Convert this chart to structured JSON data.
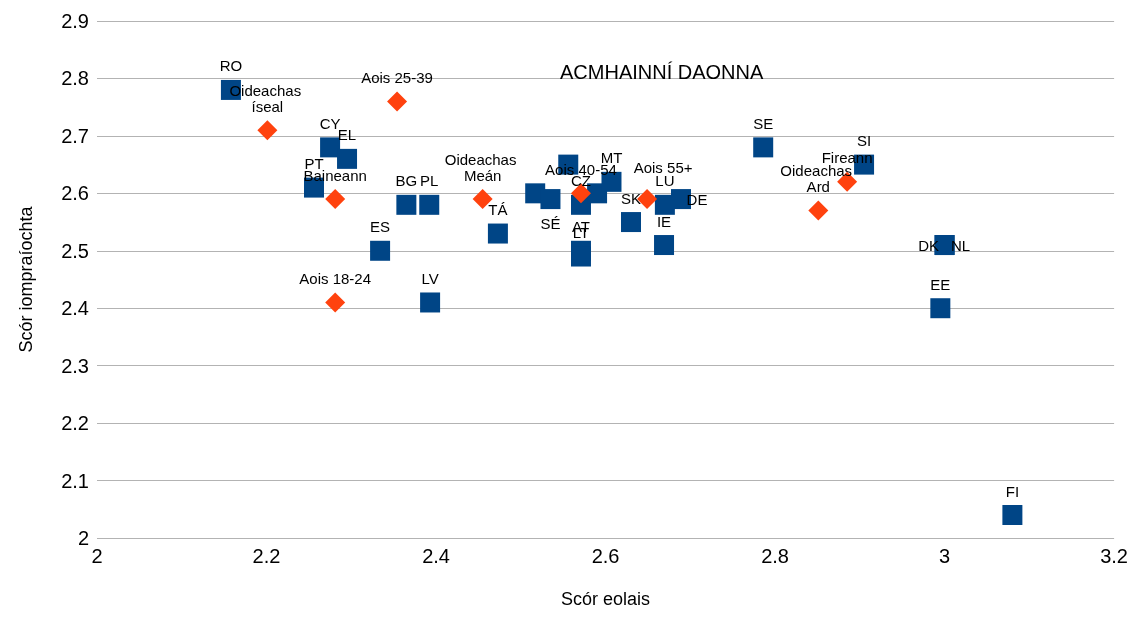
{
  "chart_data": {
    "type": "scatter",
    "xlabel": "Scór eolais",
    "ylabel": "Scór iompraíochta",
    "xlim": [
      2,
      3.2
    ],
    "xticks": [
      2,
      2.2,
      2.4,
      2.6,
      2.8,
      3,
      3.2
    ],
    "ylim": [
      2,
      2.9
    ],
    "yticks": [
      2,
      2.1,
      2.2,
      2.3,
      2.4,
      2.5,
      2.6,
      2.7,
      2.8,
      2.9
    ],
    "grid": "y",
    "annotations": [
      "ACMHAINNÍ DAONNA"
    ],
    "series": [
      {
        "color": "#004586",
        "marker": "square",
        "x": [
          2.158,
          2.275,
          2.295,
          2.256,
          2.365,
          2.392,
          2.334,
          2.393,
          2.473,
          2.517,
          2.535,
          2.556,
          2.571,
          2.571,
          2.571,
          2.59,
          2.607,
          2.63,
          2.67,
          2.669,
          2.689,
          2.786,
          2.905,
          3.0,
          3.0,
          2.995,
          3.08
        ],
        "values": [
          2.78,
          2.68,
          2.66,
          2.61,
          2.58,
          2.58,
          2.5,
          2.41,
          2.53,
          2.6,
          2.59,
          2.65,
          2.58,
          2.5,
          2.49,
          2.6,
          2.62,
          2.55,
          2.58,
          2.51,
          2.59,
          2.68,
          2.65,
          2.51,
          2.51,
          2.4,
          2.04
        ],
        "value_labels": [
          "RO",
          "CY",
          "EL",
          "PT",
          "BG",
          "PL",
          "ES",
          "LV",
          "TÁ",
          null,
          "SÉ",
          null,
          "CZ",
          "AT",
          "LT",
          null,
          "MT",
          "SK",
          "LU",
          "IE",
          "DE",
          "SE",
          "SI",
          "DK",
          "NL",
          "EE",
          "FI"
        ]
      },
      {
        "color": "#ff420e",
        "marker": "diamond",
        "x": [
          2.201,
          2.354,
          2.281,
          2.281,
          2.455,
          2.571,
          2.649,
          2.851,
          2.885
        ],
        "values": [
          2.71,
          2.76,
          2.59,
          2.41,
          2.59,
          2.6,
          2.59,
          2.57,
          2.62
        ],
        "value_labels": [
          "Oideachas íseal",
          "Aois 25-39",
          "Baineann",
          "Aois 18-24",
          "Oideachas Meán",
          "Aois 40-54",
          "Aois 55+",
          "Oideachas Ard",
          "Fireann"
        ]
      }
    ]
  }
}
